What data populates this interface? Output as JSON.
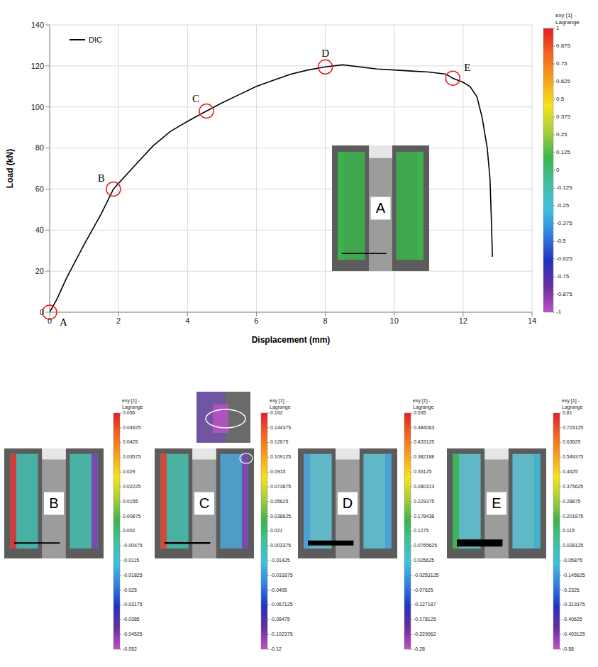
{
  "chart_data": {
    "type": "line",
    "x_label": "Displacement (mm)",
    "y_label": "Load (kN)",
    "xlim": [
      0,
      14
    ],
    "ylim": [
      0,
      140
    ],
    "xticks": [
      0,
      2,
      4,
      6,
      8,
      10,
      12,
      14
    ],
    "yticks": [
      0,
      20,
      40,
      60,
      80,
      100,
      120,
      140
    ],
    "grid": true,
    "legend": "upper left",
    "x": [
      0,
      0.2,
      0.5,
      1,
      1.5,
      1.85,
      2.5,
      3,
      3.5,
      4,
      4.55,
      5,
      5.5,
      6,
      6.5,
      7,
      7.5,
      8,
      8.5,
      9,
      9.5,
      10,
      10.5,
      11,
      11.5,
      11.7,
      12,
      12.2,
      12.4,
      12.55,
      12.7,
      12.78,
      12.82,
      12.85
    ],
    "series": [
      {
        "name": "DIC",
        "color": "#000000",
        "values": [
          0,
          6,
          17,
          33,
          48,
          60,
          72,
          81,
          88,
          93,
          98,
          102,
          106,
          110,
          113,
          116,
          118,
          119.5,
          120.5,
          119.5,
          118.5,
          118,
          117.5,
          117,
          116,
          114,
          112,
          110,
          105,
          95,
          80,
          65,
          45,
          27
        ]
      }
    ],
    "annotations": [
      {
        "label": "A",
        "x": 0,
        "y": 0
      },
      {
        "label": "B",
        "x": 1.85,
        "y": 60
      },
      {
        "label": "C",
        "x": 4.55,
        "y": 98
      },
      {
        "label": "D",
        "x": 8,
        "y": 119.5
      },
      {
        "label": "E",
        "x": 11.7,
        "y": 114
      }
    ],
    "colorbar": {
      "title": "exy [1] - Lagrange",
      "range": [
        -1,
        1
      ],
      "ticks": [
        1,
        0.875,
        0.75,
        0.625,
        0.5,
        0.375,
        0.25,
        0.125,
        0,
        -0.125,
        -0.25,
        -0.375,
        -0.5,
        -0.625,
        -0.75,
        -0.875,
        -1
      ],
      "colors": [
        "#e41e26",
        "#f26522",
        "#f7a21b",
        "#f5e31b",
        "#a6ce39",
        "#3cb44b",
        "#40c0a0",
        "#3fc0e0",
        "#2f80e0",
        "#2233c0",
        "#6a2ca0",
        "#c050c8"
      ]
    }
  },
  "images": [
    {
      "label": "A"
    },
    {
      "label": "B",
      "colorbar": {
        "title": "exy [1] - Lagrange",
        "range": [
          -0.052,
          0.056
        ],
        "ticks": [
          0.056,
          0.04925,
          0.0425,
          0.03575,
          0.029,
          0.02225,
          0.0155,
          0.00875,
          0.002,
          -0.00475,
          -0.0115,
          -0.01825,
          -0.025,
          -0.03175,
          -0.0385,
          -0.04525,
          -0.052
        ]
      }
    },
    {
      "label": "C",
      "colorbar": {
        "title": "exy [1] - Lagrange",
        "range": [
          -0.12,
          0.162
        ],
        "ticks": [
          0.162,
          0.144375,
          0.12675,
          0.109125,
          0.0915,
          0.073875,
          0.05625,
          0.038625,
          0.021,
          0.003375,
          -0.01425,
          -0.031875,
          -0.0495,
          -0.067125,
          -0.08475,
          -0.102375,
          -0.12
        ]
      }
    },
    {
      "label": "D",
      "colorbar": {
        "title": "exy [1] - Lagrange",
        "range": [
          -0.28,
          0.535
        ],
        "ticks": [
          0.535,
          0.484063,
          0.433125,
          0.382188,
          0.33125,
          0.280313,
          0.229375,
          0.178438,
          0.1275,
          0.0765625,
          0.025625,
          -0.0253125,
          -0.07625,
          -0.127187,
          -0.178125,
          -0.229062,
          -0.28
        ]
      }
    },
    {
      "label": "E",
      "colorbar": {
        "title": "exy [1] - Lagrange",
        "range": [
          -0.58,
          0.81
        ],
        "ticks": [
          0.81,
          0.723125,
          0.63625,
          0.549375,
          0.4625,
          0.375625,
          0.28875,
          0.201875,
          0.115,
          0.028125,
          -0.05875,
          -0.145625,
          -0.2325,
          -0.319375,
          -0.40625,
          -0.493125,
          -0.58
        ]
      }
    }
  ]
}
